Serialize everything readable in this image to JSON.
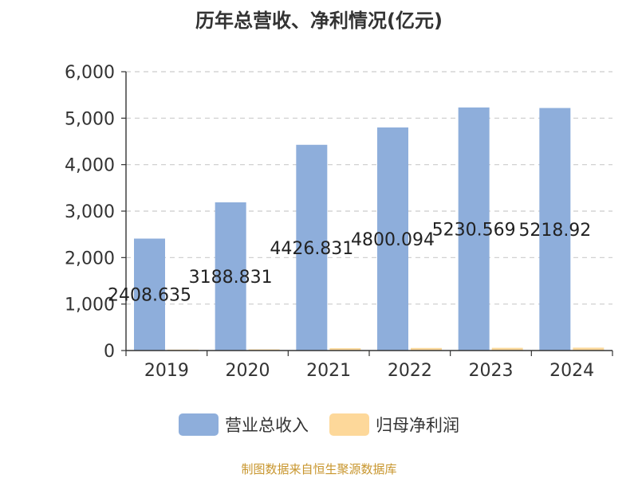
{
  "chart_data": {
    "type": "bar",
    "title": "历年总营收、净利情况(亿元)",
    "categories": [
      "2019",
      "2020",
      "2021",
      "2022",
      "2023",
      "2024"
    ],
    "series": [
      {
        "name": "营业总收入",
        "color": "#8eaedb",
        "values": [
          2408.635,
          3188.831,
          4426.831,
          4800.094,
          5230.569,
          5218.92
        ],
        "labels": [
          "2408.635",
          "3188.831",
          "4426.831",
          "4800.094",
          "5230.569",
          "5218.92"
        ]
      },
      {
        "name": "归母净利润",
        "color": "#fdd89a",
        "values": [
          20,
          25,
          50,
          55,
          58,
          62
        ]
      }
    ],
    "ylim": [
      0,
      6000
    ],
    "yticks": [
      "0",
      "1,000",
      "2,000",
      "3,000",
      "4,000",
      "5,000",
      "6,000"
    ],
    "grid": true,
    "legend_position": "bottom"
  },
  "source": "制图数据来自恒生聚源数据库"
}
